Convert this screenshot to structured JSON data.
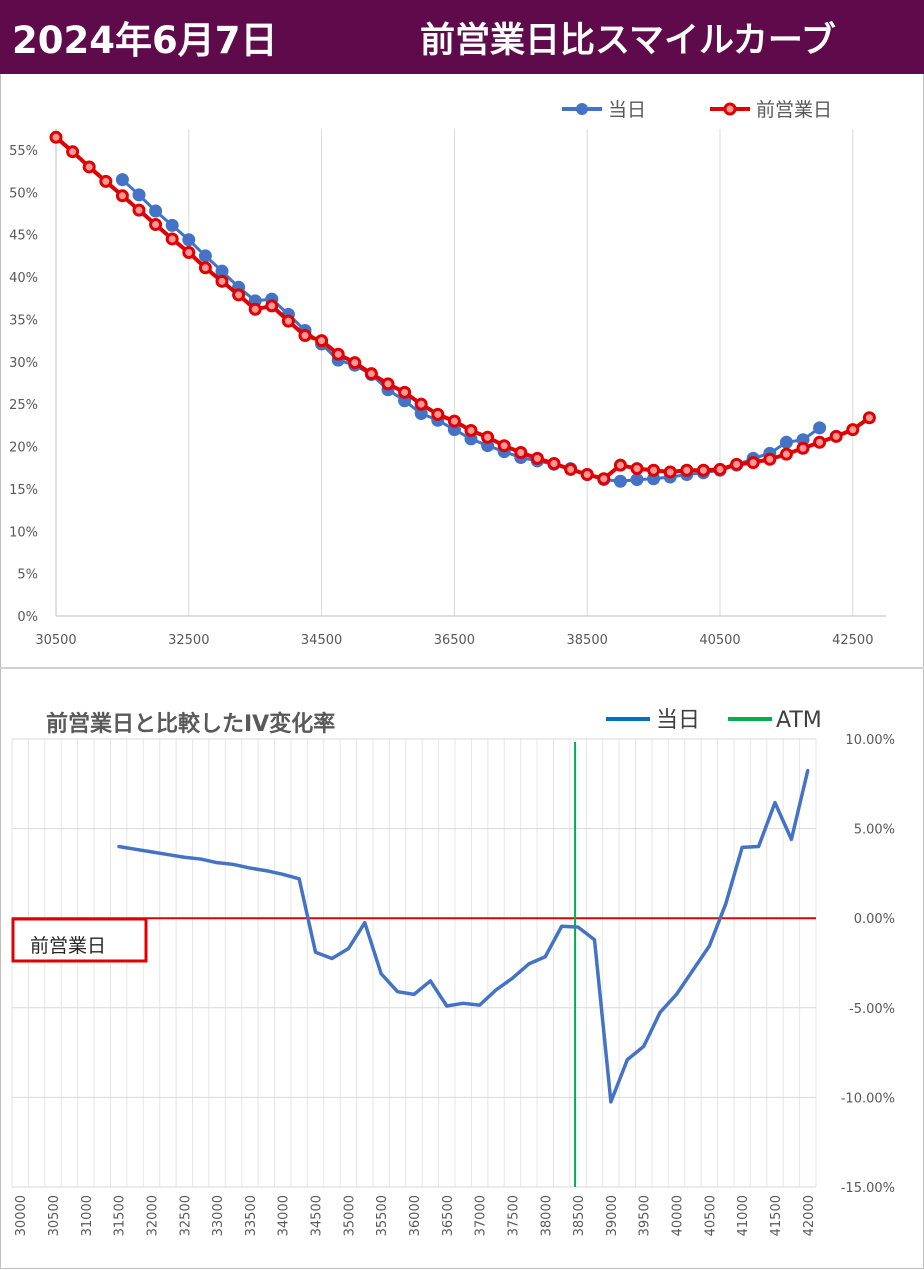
{
  "header": {
    "date": "2024年6月7日",
    "title": "前営業日比スマイルカーブ"
  },
  "chart_data": [
    {
      "type": "line",
      "title": "",
      "xlim": [
        30500,
        43000
      ],
      "ylim": [
        0,
        0.55
      ],
      "x_ticks": [
        "30500",
        "32500",
        "34500",
        "36500",
        "38500",
        "40500",
        "42500"
      ],
      "y_ticks": [
        "0%",
        "5%",
        "10%",
        "15%",
        "20%",
        "25%",
        "30%",
        "35%",
        "40%",
        "45%",
        "50%",
        "55%"
      ],
      "legend": "top-right",
      "grid": "vertical",
      "series": [
        {
          "name": "当日",
          "color": "#4472c4",
          "x": [
            31500,
            31750,
            32000,
            32250,
            32500,
            32750,
            33000,
            33250,
            33500,
            33750,
            34000,
            34250,
            34500,
            34750,
            35000,
            35250,
            35500,
            35750,
            36000,
            36250,
            36500,
            36750,
            37000,
            37250,
            37500,
            37750,
            38000,
            38250,
            38500,
            38750,
            39000,
            39250,
            39500,
            39750,
            40000,
            40250,
            40500,
            40750,
            41000,
            41250,
            41500,
            41750,
            42000
          ],
          "y": [
            0.515,
            0.497,
            0.478,
            0.461,
            0.444,
            0.425,
            0.407,
            0.388,
            0.372,
            0.374,
            0.356,
            0.337,
            0.321,
            0.302,
            0.296,
            0.285,
            0.267,
            0.254,
            0.239,
            0.231,
            0.22,
            0.209,
            0.201,
            0.194,
            0.187,
            0.183,
            0.179,
            0.174,
            0.167,
            0.161,
            0.159,
            0.161,
            0.162,
            0.164,
            0.167,
            0.169,
            0.172,
            0.178,
            0.186,
            0.192,
            0.205,
            0.208,
            0.222
          ]
        },
        {
          "name": "前営業日",
          "color": "#e00000",
          "x": [
            30500,
            30750,
            31000,
            31250,
            31500,
            31750,
            32000,
            32250,
            32500,
            32750,
            33000,
            33250,
            33500,
            33750,
            34000,
            34250,
            34500,
            34750,
            35000,
            35250,
            35500,
            35750,
            36000,
            36250,
            36500,
            36750,
            37000,
            37250,
            37500,
            37750,
            38000,
            38250,
            38500,
            38750,
            39000,
            39250,
            39500,
            39750,
            40000,
            40250,
            40500,
            40750,
            41000,
            41250,
            41500,
            41750,
            42000,
            42250,
            42500,
            42750
          ],
          "y": [
            0.565,
            0.548,
            0.53,
            0.513,
            0.496,
            0.479,
            0.462,
            0.445,
            0.429,
            0.411,
            0.395,
            0.379,
            0.362,
            0.366,
            0.348,
            0.331,
            0.325,
            0.309,
            0.299,
            0.286,
            0.274,
            0.264,
            0.25,
            0.238,
            0.23,
            0.219,
            0.211,
            0.201,
            0.193,
            0.186,
            0.18,
            0.173,
            0.167,
            0.162,
            0.178,
            0.174,
            0.172,
            0.17,
            0.172,
            0.172,
            0.173,
            0.179,
            0.181,
            0.185,
            0.191,
            0.198,
            0.205,
            0.212,
            0.22,
            0.234
          ]
        }
      ]
    },
    {
      "type": "line",
      "title": "前営業日と比較したIV変化率",
      "categories": [
        30000,
        30250,
        30500,
        30750,
        31000,
        31250,
        31500,
        31750,
        32000,
        32250,
        32500,
        32750,
        33000,
        33250,
        33500,
        33750,
        34000,
        34250,
        34500,
        34750,
        35000,
        35250,
        35500,
        35750,
        36000,
        36250,
        36500,
        36750,
        37000,
        37250,
        37500,
        37750,
        38000,
        38250,
        38500,
        38750,
        39000,
        39250,
        39500,
        39750,
        40000,
        40250,
        40500,
        40750,
        41000,
        41250,
        41500,
        41750,
        42000
      ],
      "tick_labels": [
        "30000",
        "30500",
        "31000",
        "31500",
        "32000",
        "32500",
        "33000",
        "33500",
        "34000",
        "34500",
        "35000",
        "35500",
        "36000",
        "36500",
        "37000",
        "37500",
        "38000",
        "38500",
        "39000",
        "39500",
        "40000",
        "40500",
        "41000",
        "41500",
        "42000"
      ],
      "ylim": [
        -0.15,
        0.1
      ],
      "y_ticks": [
        "10.00%",
        "5.00%",
        "0.00%",
        "-5.00%",
        "-10.00%",
        "-15.00%"
      ],
      "legend": "top-right",
      "atm_label": "ATM",
      "atm_x": 38500,
      "atm_color": "#00b050",
      "baseline_label": "前営業日",
      "baseline_color": "#e00000",
      "series": [
        {
          "name": "当日",
          "color": "#4472c4",
          "x": [
            31500,
            31750,
            32000,
            32250,
            32500,
            32750,
            33000,
            33250,
            33500,
            33750,
            34000,
            34250,
            34500,
            34750,
            35000,
            35250,
            35500,
            35750,
            36000,
            36250,
            36500,
            36750,
            37000,
            37250,
            37500,
            37750,
            38000,
            38250,
            38500,
            38750,
            39000,
            39250,
            39500,
            39750,
            40000,
            40250,
            40500,
            40750,
            41000,
            41250,
            41500,
            41750,
            42000
          ],
          "y": [
            0.04,
            0.0385,
            0.037,
            0.0355,
            0.034,
            0.033,
            0.031,
            0.03,
            0.028,
            0.0265,
            0.0245,
            0.022,
            -0.019,
            -0.0225,
            -0.017,
            -0.0025,
            -0.031,
            -0.041,
            -0.0425,
            -0.035,
            -0.049,
            -0.0475,
            -0.0485,
            -0.04,
            -0.0335,
            -0.0255,
            -0.0215,
            -0.0045,
            -0.005,
            -0.012,
            -0.1025,
            -0.079,
            -0.0715,
            -0.0525,
            -0.0425,
            -0.029,
            -0.0155,
            0.008,
            0.0395,
            0.04,
            0.0645,
            0.044,
            0.0825
          ]
        }
      ]
    }
  ]
}
